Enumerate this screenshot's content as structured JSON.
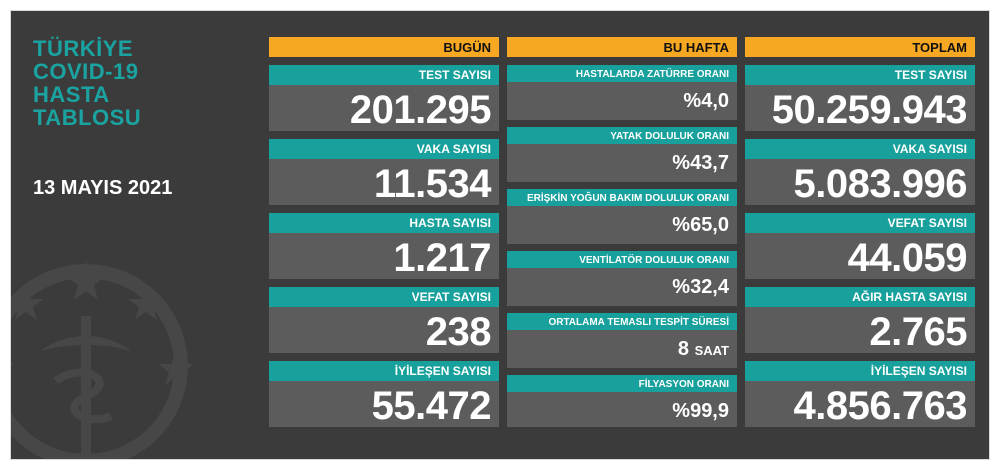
{
  "title_lines": [
    "TÜRKİYE",
    "COVID-19",
    "HASTA",
    "TABLOSU"
  ],
  "date": "13 MAYIS 2021",
  "today": {
    "header": "BUGÜN",
    "items": [
      {
        "label": "TEST SAYISI",
        "value": "201.295"
      },
      {
        "label": "VAKA SAYISI",
        "value": "11.534"
      },
      {
        "label": "HASTA SAYISI",
        "value": "1.217"
      },
      {
        "label": "VEFAT SAYISI",
        "value": "238"
      },
      {
        "label": "İYİLEŞEN SAYISI",
        "value": "55.472"
      }
    ]
  },
  "this_week": {
    "header": "BU HAFTA",
    "items": [
      {
        "label": "HASTALARDA ZATÜRRE ORANI",
        "value": "%4,0"
      },
      {
        "label": "YATAK DOLULUK ORANI",
        "value": "%43,7"
      },
      {
        "label": "ERİŞKİN YOĞUN BAKIM DOLULUK ORANI",
        "value": "%65,0"
      },
      {
        "label": "VENTİLATÖR DOLULUK ORANI",
        "value": "%32,4"
      },
      {
        "label": "ORTALAMA TEMASLI TESPİT SÜRESİ",
        "value": "8",
        "unit": "SAAT"
      },
      {
        "label": "FİLYASYON ORANI",
        "value": "%99,9"
      }
    ]
  },
  "total": {
    "header": "TOPLAM",
    "items": [
      {
        "label": "TEST SAYISI",
        "value": "50.259.943"
      },
      {
        "label": "VAKA SAYISI",
        "value": "5.083.996"
      },
      {
        "label": "VEFAT SAYISI",
        "value": "44.059"
      },
      {
        "label": "AĞIR HASTA SAYISI",
        "value": "2.765"
      },
      {
        "label": "İYİLEŞEN SAYISI",
        "value": "4.856.763"
      }
    ]
  },
  "colors": {
    "accent_orange": "#f6a823",
    "accent_teal": "#17a09c",
    "panel": "#3b3b3b",
    "box": "#5c5c5c"
  },
  "icons": [
    "ministry-emblem-icon"
  ]
}
